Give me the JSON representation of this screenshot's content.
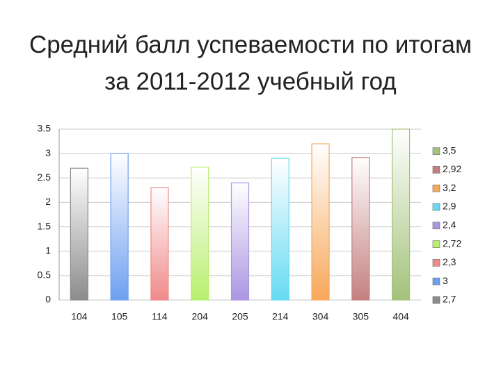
{
  "chart_data": {
    "type": "bar",
    "title": "Средний балл успеваемости по итогам за 2011-2012 учебный год",
    "categories": [
      "104",
      "105",
      "114",
      "204",
      "205",
      "214",
      "304",
      "305",
      "404"
    ],
    "series": [
      {
        "name": "2,7",
        "color": "#8c8c8c",
        "values": [
          2.7,
          null,
          null,
          null,
          null,
          null,
          null,
          null,
          null
        ]
      },
      {
        "name": "3",
        "color": "#6f9ff0",
        "values": [
          null,
          3,
          null,
          null,
          null,
          null,
          null,
          null,
          null
        ]
      },
      {
        "name": "2,3",
        "color": "#f08a8a",
        "values": [
          null,
          null,
          2.3,
          null,
          null,
          null,
          null,
          null,
          null
        ]
      },
      {
        "name": "2,72",
        "color": "#b8ef6e",
        "values": [
          null,
          null,
          null,
          2.72,
          null,
          null,
          null,
          null,
          null
        ]
      },
      {
        "name": "2,4",
        "color": "#ab96e2",
        "values": [
          null,
          null,
          null,
          null,
          2.4,
          null,
          null,
          null,
          null
        ]
      },
      {
        "name": "2,9",
        "color": "#66daf2",
        "values": [
          null,
          null,
          null,
          null,
          null,
          2.9,
          null,
          null,
          null
        ]
      },
      {
        "name": "3,2",
        "color": "#f7a85a",
        "values": [
          null,
          null,
          null,
          null,
          null,
          null,
          3.2,
          null,
          null
        ]
      },
      {
        "name": "2,92",
        "color": "#c48080",
        "values": [
          null,
          null,
          null,
          null,
          null,
          null,
          null,
          2.92,
          null
        ]
      },
      {
        "name": "3,5",
        "color": "#a3c27a",
        "values": [
          null,
          null,
          null,
          null,
          null,
          null,
          null,
          null,
          3.5
        ]
      }
    ],
    "ylim": [
      0,
      3.5
    ],
    "yticks": [
      0,
      0.5,
      1,
      1.5,
      2,
      2.5,
      3,
      3.5
    ],
    "grid": true,
    "legend": "right"
  }
}
